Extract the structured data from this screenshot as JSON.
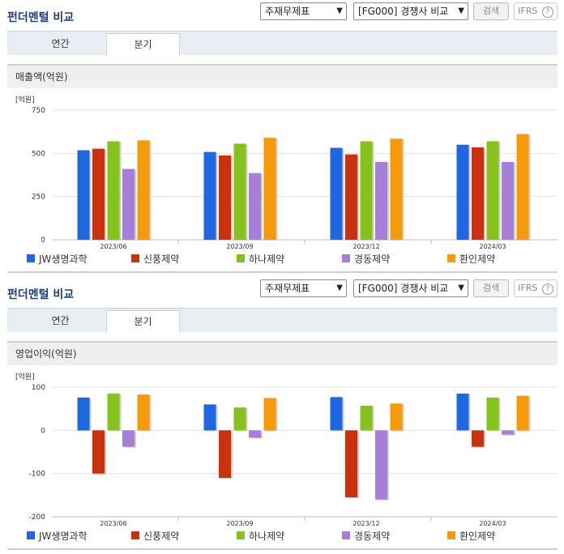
{
  "panels": [
    {
      "title": "펀더멘털 비교",
      "select1": "주재무제표",
      "select2": "[FG000] 경쟁사 비교",
      "search_label": "검색",
      "ifrs_label": "IFRS",
      "help_icon": "question-circle-icon",
      "tabs": [
        "연간",
        "분기"
      ],
      "active_tab": "분기",
      "metric_title": "매출액(억원)"
    },
    {
      "title": "펀더멘털 비교",
      "select1": "주재무제표",
      "select2": "[FG000] 경쟁사 비교",
      "search_label": "검색",
      "ifrs_label": "IFRS",
      "help_icon": "question-circle-icon",
      "tabs": [
        "연간",
        "분기"
      ],
      "active_tab": "분기",
      "metric_title": "영업이익(억원)"
    }
  ],
  "colors": {
    "series": [
      "#1f67e0",
      "#c9320f",
      "#85c21b",
      "#a77fdb",
      "#f59a0a"
    ],
    "title": "#1f3f7a"
  },
  "chart_data": [
    {
      "type": "bar",
      "unit_label": "[억원]",
      "categories": [
        "2023/06",
        "2023/09",
        "2023/12",
        "2024/03"
      ],
      "series": [
        {
          "name": "JW생명과학",
          "values": [
            518,
            508,
            532,
            550
          ]
        },
        {
          "name": "신풍제약",
          "values": [
            527,
            488,
            494,
            535
          ]
        },
        {
          "name": "하나제약",
          "values": [
            570,
            556,
            570,
            570
          ]
        },
        {
          "name": "경동제약",
          "values": [
            410,
            386,
            450,
            450
          ]
        },
        {
          "name": "환인제약",
          "values": [
            575,
            590,
            585,
            612
          ]
        }
      ],
      "yticks": [
        0,
        250,
        500,
        750
      ],
      "ylim": [
        0,
        750
      ],
      "legend": "bottom"
    },
    {
      "type": "bar",
      "unit_label": "[억원]",
      "categories": [
        "2023/06",
        "2023/09",
        "2023/12",
        "2024/03"
      ],
      "series": [
        {
          "name": "JW생명과학",
          "values": [
            76,
            60,
            77,
            85
          ]
        },
        {
          "name": "신풍제약",
          "values": [
            -100,
            -110,
            -155,
            -38
          ]
        },
        {
          "name": "하나제약",
          "values": [
            85,
            53,
            57,
            76
          ]
        },
        {
          "name": "경동제약",
          "values": [
            -38,
            -17,
            -160,
            -10
          ]
        },
        {
          "name": "환인제약",
          "values": [
            83,
            75,
            62,
            80
          ]
        }
      ],
      "yticks": [
        -200,
        -100,
        0,
        100
      ],
      "ylim": [
        -200,
        100
      ],
      "legend": "bottom"
    }
  ]
}
